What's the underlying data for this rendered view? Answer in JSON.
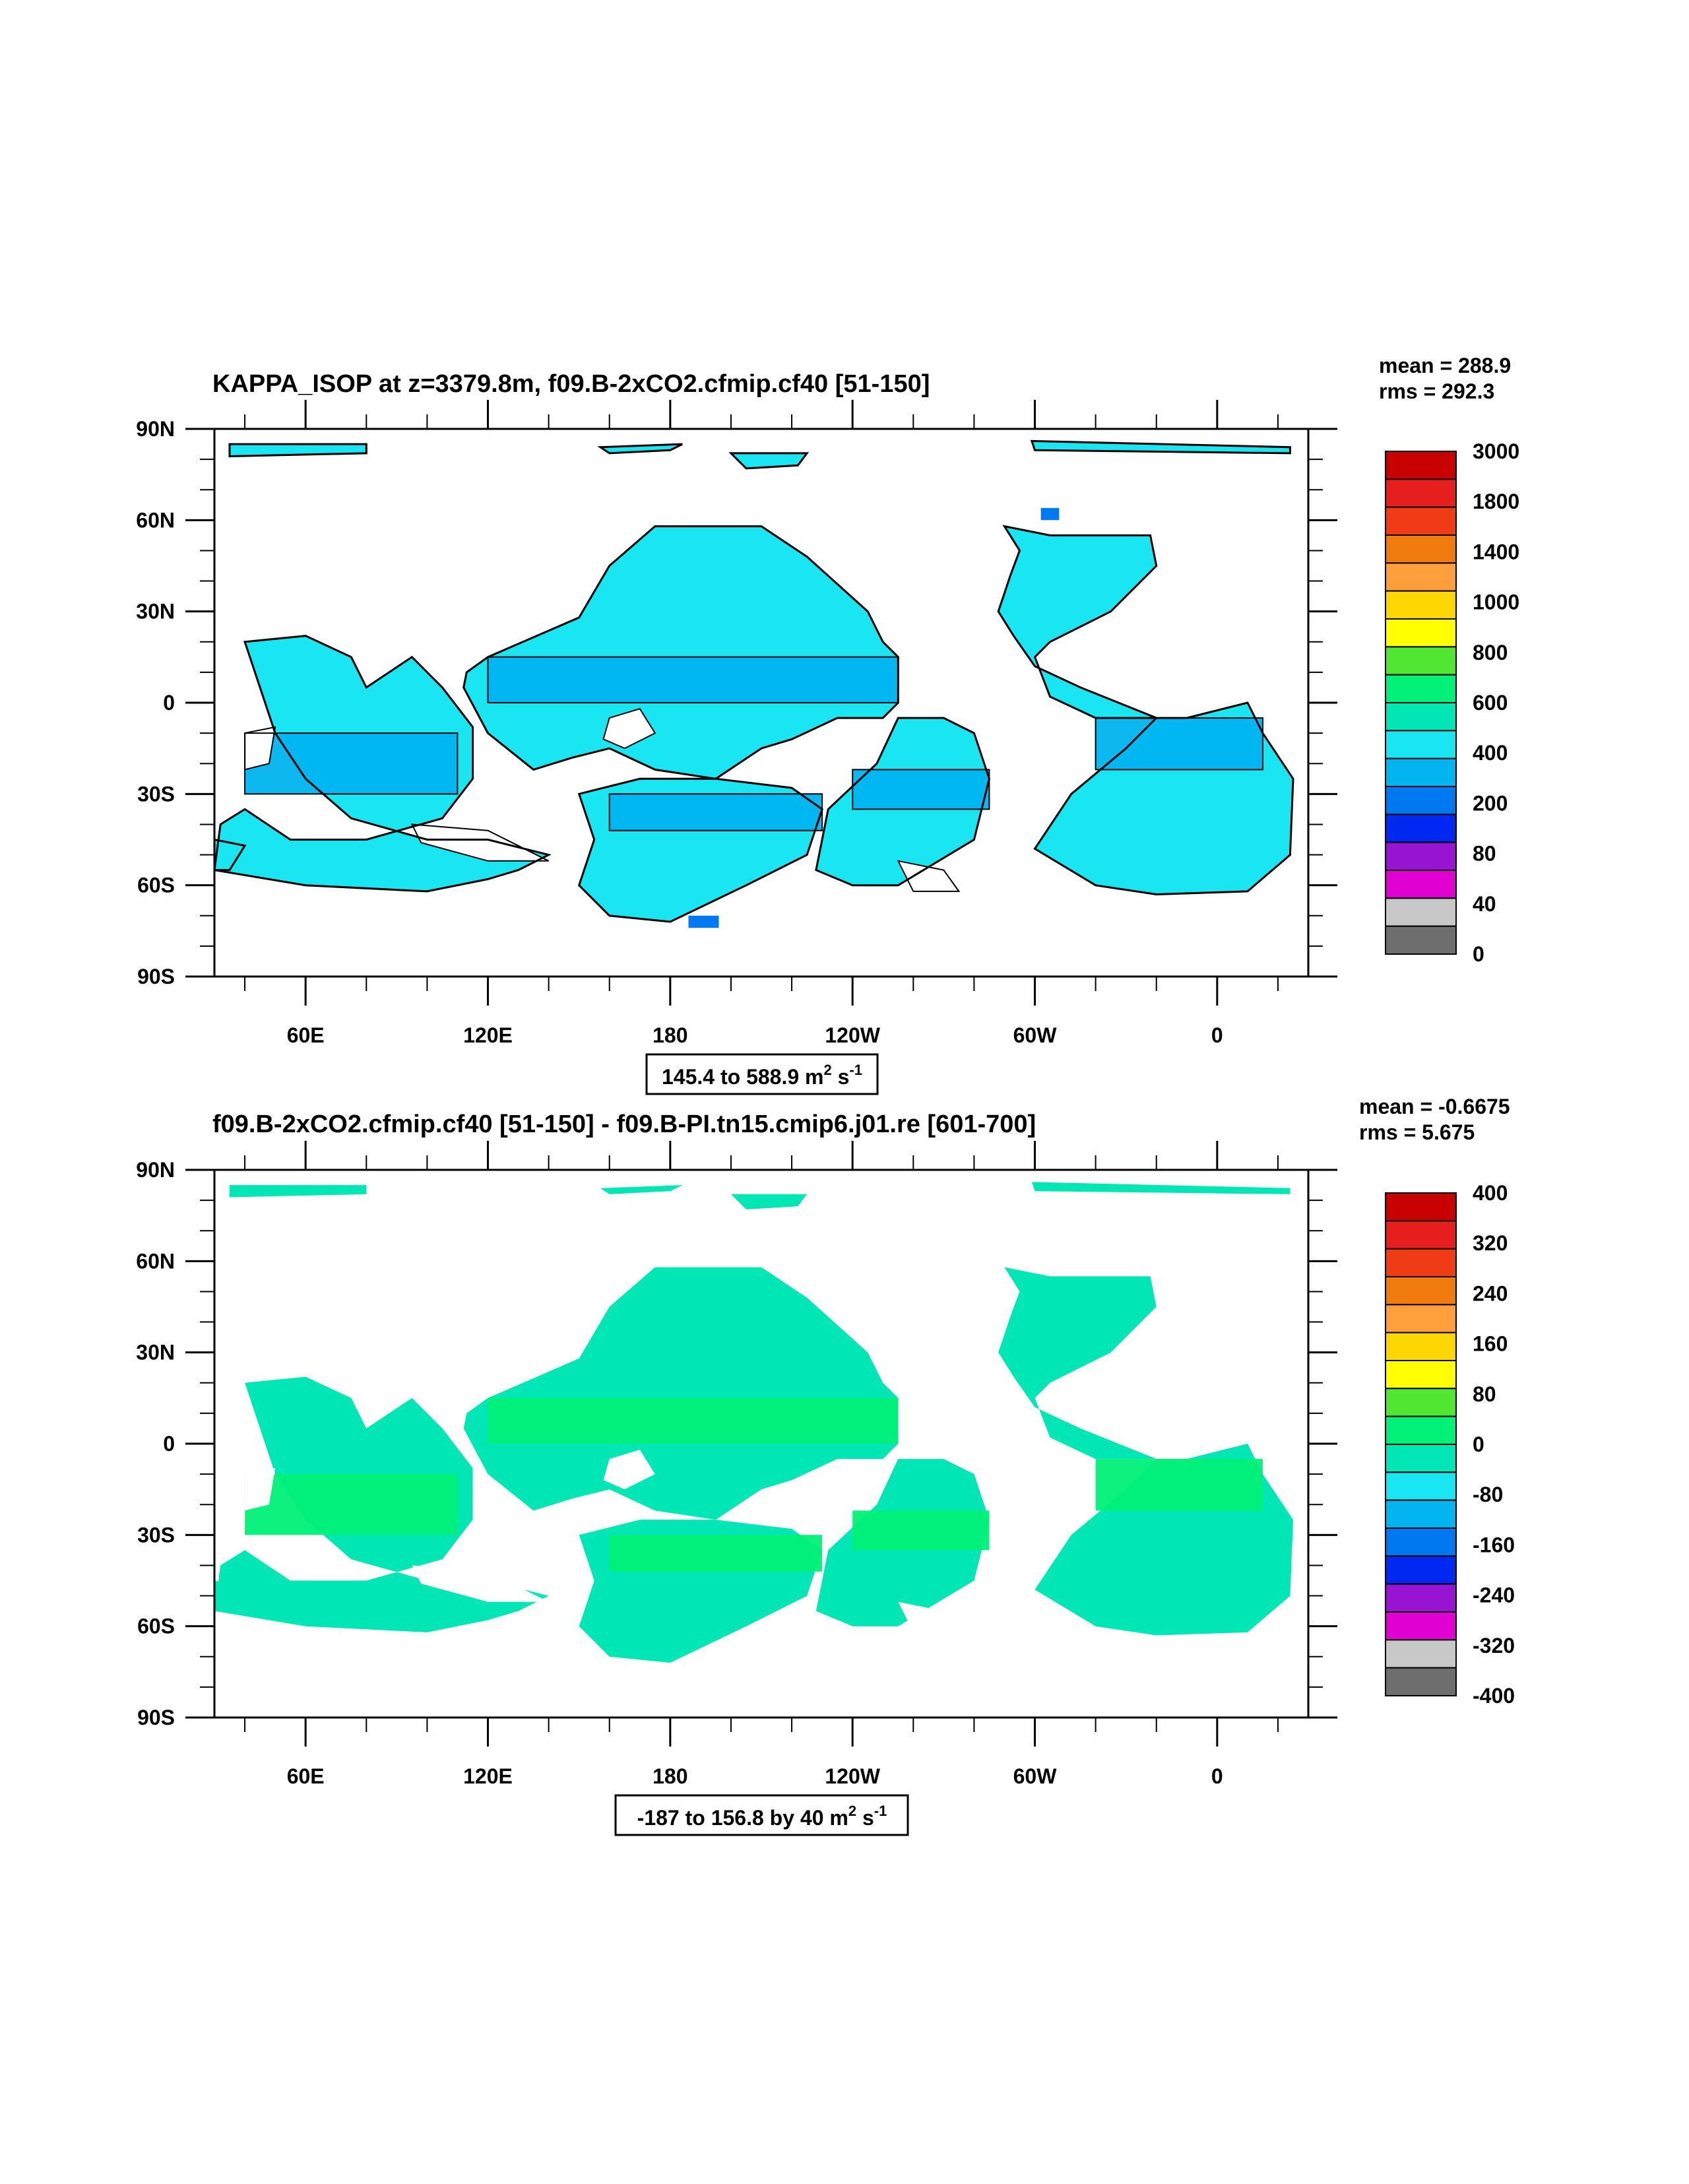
{
  "chart_data": [
    {
      "type": "heatmap",
      "title": "KAPPA_ISOP at z=3379.8m, f09.B-2xCO2.cfmip.cf40 [51-150]",
      "stats": {
        "mean": "mean = 288.9",
        "rms": "rms = 292.3"
      },
      "info_main": "145.4 to 588.9 m",
      "info_sup1": "2",
      "info_mid": " s",
      "info_sup2": "-1",
      "x_ticks": [
        "60E",
        "120E",
        "180",
        "120W",
        "60W",
        "0"
      ],
      "y_ticks": [
        "90N",
        "60N",
        "30N",
        "0",
        "30S",
        "60S",
        "90S"
      ],
      "xlim_degrees_east": [
        30,
        390
      ],
      "ylim": [
        -90,
        90
      ],
      "colorbar_labels": [
        "3000",
        "1800",
        "1400",
        "1000",
        "800",
        "600",
        "400",
        "200",
        "80",
        "40",
        "0"
      ],
      "colorbar_colors": [
        "#c80000",
        "#e61e1e",
        "#f03c14",
        "#f07c0f",
        "#ffa03c",
        "#ffd700",
        "#ffff00",
        "#50e632",
        "#00f078",
        "#00e6b4",
        "#19e6f0",
        "#00b4f0",
        "#0078f0",
        "#0028f0",
        "#9614d2",
        "#e100d2",
        "#c8c8c8",
        "#6e6e6e"
      ],
      "data_fills": [
        "#19e6f0",
        "#00b4f0",
        "#0078f0"
      ],
      "contours": true
    },
    {
      "type": "heatmap",
      "title": "f09.B-2xCO2.cfmip.cf40 [51-150] - f09.B-PI.tn15.cmip6.j01.re [601-700]",
      "stats": {
        "mean": "mean = -0.6675",
        "rms": "rms = 5.675"
      },
      "info_main": "-187 to 156.8 by 40 m",
      "info_sup1": "2",
      "info_mid": " s",
      "info_sup2": "-1",
      "x_ticks": [
        "60E",
        "120E",
        "180",
        "120W",
        "60W",
        "0"
      ],
      "y_ticks": [
        "90N",
        "60N",
        "30N",
        "0",
        "30S",
        "60S",
        "90S"
      ],
      "xlim_degrees_east": [
        30,
        390
      ],
      "ylim": [
        -90,
        90
      ],
      "colorbar_labels": [
        "400",
        "320",
        "240",
        "160",
        "80",
        "0",
        "-80",
        "-160",
        "-240",
        "-320",
        "-400"
      ],
      "colorbar_colors": [
        "#c80000",
        "#e61e1e",
        "#f03c14",
        "#f07c0f",
        "#ffa03c",
        "#ffd700",
        "#ffff00",
        "#50e632",
        "#00f078",
        "#00e6b4",
        "#19e6f0",
        "#00b4f0",
        "#0078f0",
        "#0028f0",
        "#9614d2",
        "#e100d2",
        "#c8c8c8",
        "#6e6e6e"
      ],
      "data_fills": [
        "#00f078",
        "#00e6b4"
      ],
      "contours": false
    }
  ]
}
